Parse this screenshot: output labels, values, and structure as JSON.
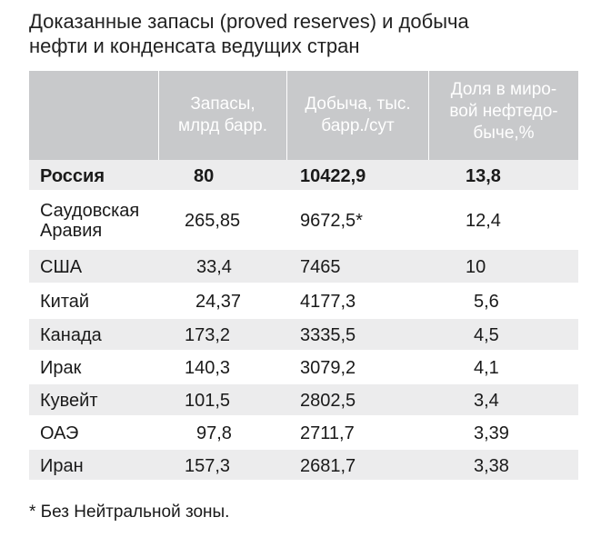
{
  "title_lines": [
    "Доказанные запасы (proved reserves) и добыча",
    "нефти и конденсата ведущих стран"
  ],
  "table": {
    "headers": [
      "",
      "Запасы,\nмлрд барр.",
      "Добыча, тыс.\nбарр./сут",
      "Доля в миро-\nвой нефтедо-\nбыче,%"
    ],
    "rows": [
      {
        "country": "Россия",
        "reserves": "80",
        "production": "10422,9",
        "share": "13,8",
        "bold": true
      },
      {
        "country": "Саудовская\nАравия",
        "reserves": "265,85",
        "production": "9672,5*",
        "share": "12,4",
        "bold": false
      },
      {
        "country": "США",
        "reserves": "33,4",
        "production": "7465",
        "share": "10",
        "bold": false
      },
      {
        "country": "Китай",
        "reserves": "24,37",
        "production": "4177,3",
        "share": "5,6",
        "bold": false
      },
      {
        "country": "Канада",
        "reserves": "173,2",
        "production": "3335,5",
        "share": "4,5",
        "bold": false
      },
      {
        "country": "Ирак",
        "reserves": "140,3",
        "production": "3079,2",
        "share": "4,1",
        "bold": false
      },
      {
        "country": "Кувейт",
        "reserves": "101,5",
        "production": "2802,5",
        "share": "3,4",
        "bold": false
      },
      {
        "country": "ОАЭ",
        "reserves": "97,8",
        "production": "2711,7",
        "share": "3,39",
        "bold": false
      },
      {
        "country": "Иран",
        "reserves": "157,3",
        "production": "2681,7",
        "share": "3,38",
        "bold": false
      }
    ]
  },
  "footnote": "* Без Нейтральной зоны."
}
